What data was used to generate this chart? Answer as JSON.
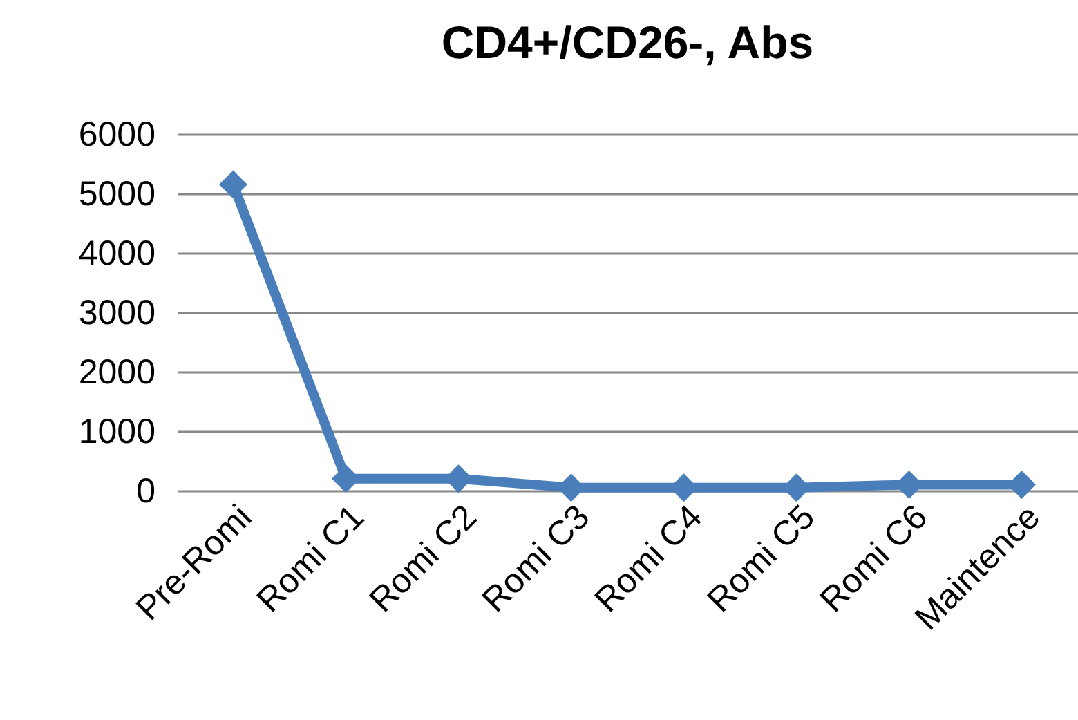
{
  "chart_data": {
    "type": "line",
    "title": "CD4+/CD26-, Abs",
    "categories": [
      "Pre-Romi",
      "Romi C1",
      "Romi C2",
      "Romi C3",
      "Romi C4",
      "Romi C5",
      "Romi C6",
      "Maintence"
    ],
    "series": [
      {
        "color": "#4a7ebb",
        "values": [
          5150,
          200,
          200,
          50,
          50,
          50,
          100,
          100
        ]
      }
    ],
    "ylim": [
      0,
      6000
    ],
    "yticks": [
      0,
      1000,
      2000,
      3000,
      4000,
      5000,
      6000
    ],
    "grid": "y",
    "marker": "diamond",
    "line_style": "solid"
  }
}
